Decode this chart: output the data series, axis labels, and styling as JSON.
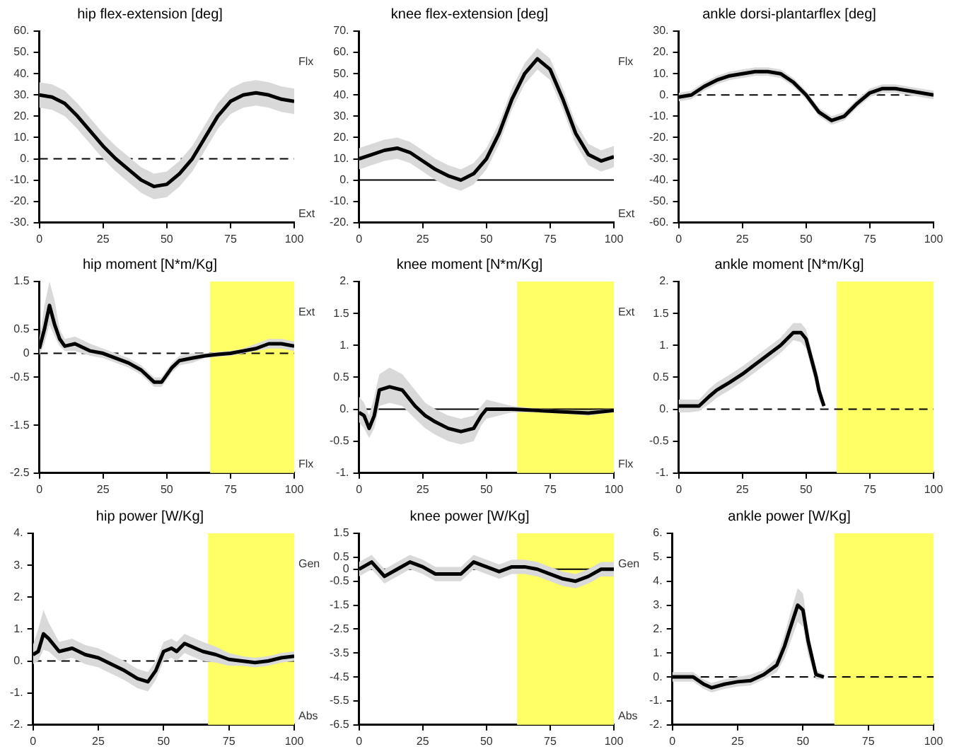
{
  "chart_data": [
    {
      "type": "line",
      "title": "hip flex-extension [deg]",
      "xlim": [
        0,
        100
      ],
      "xticks": [
        0,
        25,
        50,
        75,
        100
      ],
      "ylim": [
        -30,
        60
      ],
      "yticks": [
        {
          "value": 60,
          "label": "60."
        },
        {
          "value": 50,
          "label": "50."
        },
        {
          "value": 40,
          "label": "40."
        },
        {
          "value": 30,
          "label": "30."
        },
        {
          "value": 20,
          "label": "20."
        },
        {
          "value": 10,
          "label": "10."
        },
        {
          "value": 0,
          "label": "0."
        },
        {
          "value": -10,
          "label": "-10."
        },
        {
          "value": -20,
          "label": "-20."
        },
        {
          "value": -30,
          "label": "-30."
        }
      ],
      "annotations": [
        "Flx",
        "Ext"
      ],
      "ref_lines": [
        {
          "axis": "y",
          "value": 0,
          "line_style": "dashed"
        }
      ],
      "legend": false,
      "grid": false,
      "marker": "none",
      "series": [
        {
          "color": "#000000",
          "x": [
            0,
            5,
            10,
            15,
            20,
            25,
            30,
            35,
            40,
            45,
            50,
            55,
            60,
            65,
            70,
            75,
            80,
            85,
            90,
            95,
            100
          ],
          "values": [
            30,
            29,
            26,
            20,
            13,
            6,
            0,
            -5,
            -10,
            -13,
            -12,
            -7,
            0,
            10,
            20,
            27,
            30,
            31,
            30,
            28,
            27
          ],
          "lower": [
            24,
            23,
            20,
            14,
            7,
            0,
            -6,
            -11,
            -16,
            -19,
            -18,
            -13,
            -6,
            4,
            14,
            21,
            24,
            25,
            24,
            22,
            21
          ],
          "upper": [
            36,
            35,
            32,
            26,
            19,
            12,
            6,
            1,
            -4,
            -7,
            -6,
            -1,
            6,
            16,
            26,
            33,
            36,
            37,
            36,
            34,
            33
          ]
        }
      ]
    },
    {
      "type": "line",
      "title": "knee flex-extension [deg]",
      "xlim": [
        0,
        100
      ],
      "xticks": [
        0,
        25,
        50,
        75,
        100
      ],
      "ylim": [
        -20,
        70
      ],
      "yticks": [
        {
          "value": 70,
          "label": "70."
        },
        {
          "value": 60,
          "label": "60."
        },
        {
          "value": 50,
          "label": "50."
        },
        {
          "value": 40,
          "label": "40."
        },
        {
          "value": 30,
          "label": "30."
        },
        {
          "value": 20,
          "label": "20."
        },
        {
          "value": 10,
          "label": "10."
        },
        {
          "value": 0,
          "label": "0."
        },
        {
          "value": -10,
          "label": "-10."
        },
        {
          "value": -20,
          "label": "-20."
        }
      ],
      "annotations": [
        "Flx",
        "Ext"
      ],
      "ref_lines": [
        {
          "axis": "y",
          "value": 0,
          "line_style": "solid"
        }
      ],
      "legend": false,
      "grid": false,
      "marker": "none",
      "series": [
        {
          "color": "#000000",
          "x": [
            0,
            5,
            10,
            15,
            20,
            25,
            30,
            35,
            40,
            45,
            50,
            55,
            60,
            65,
            70,
            75,
            80,
            85,
            90,
            95,
            100
          ],
          "values": [
            10,
            12,
            14,
            15,
            13,
            9,
            5,
            2,
            0,
            3,
            10,
            22,
            38,
            50,
            57,
            52,
            38,
            22,
            12,
            9,
            11
          ],
          "lower": [
            5,
            7,
            9,
            10,
            8,
            4,
            0,
            -3,
            -5,
            -2,
            5,
            17,
            33,
            45,
            52,
            47,
            33,
            17,
            7,
            4,
            6
          ],
          "upper": [
            15,
            17,
            19,
            20,
            18,
            14,
            10,
            7,
            5,
            8,
            15,
            27,
            43,
            55,
            62,
            57,
            43,
            27,
            17,
            14,
            16
          ]
        }
      ]
    },
    {
      "type": "line",
      "title": "ankle dorsi-plantarflex [deg]",
      "xlim": [
        0,
        100
      ],
      "xticks": [
        0,
        25,
        50,
        75,
        100
      ],
      "ylim": [
        -60,
        30
      ],
      "yticks": [
        {
          "value": 30,
          "label": "30."
        },
        {
          "value": 20,
          "label": "20."
        },
        {
          "value": 10,
          "label": "10."
        },
        {
          "value": 0,
          "label": "0."
        },
        {
          "value": -10,
          "label": "-10."
        },
        {
          "value": -20,
          "label": "-20."
        },
        {
          "value": -30,
          "label": "-30."
        },
        {
          "value": -40,
          "label": "-40."
        },
        {
          "value": -50,
          "label": "-50."
        },
        {
          "value": -60,
          "label": "-60."
        }
      ],
      "ref_lines": [
        {
          "axis": "y",
          "value": 0,
          "line_style": "dashed"
        }
      ],
      "legend": false,
      "grid": false,
      "marker": "none",
      "series": [
        {
          "color": "#000000",
          "x": [
            0,
            5,
            10,
            15,
            20,
            25,
            30,
            35,
            40,
            45,
            50,
            55,
            60,
            65,
            70,
            75,
            80,
            85,
            90,
            95,
            100
          ],
          "values": [
            -1,
            0,
            4,
            7,
            9,
            10,
            11,
            11,
            10,
            6,
            0,
            -8,
            -12,
            -10,
            -4,
            1,
            3,
            3,
            2,
            1,
            0
          ],
          "lower": [
            -3,
            -2,
            2,
            5,
            7,
            8,
            9,
            9,
            8,
            4,
            -2,
            -10,
            -14,
            -12,
            -6,
            -1,
            1,
            1,
            0,
            -1,
            -2
          ],
          "upper": [
            1,
            2,
            6,
            9,
            11,
            12,
            13,
            13,
            12,
            8,
            2,
            -6,
            -10,
            -8,
            -2,
            3,
            5,
            5,
            4,
            3,
            2
          ]
        }
      ]
    },
    {
      "type": "line",
      "title": "hip moment [N*m/Kg]",
      "xlim": [
        0,
        100
      ],
      "xticks": [
        0,
        25,
        50,
        75,
        100
      ],
      "ylim": [
        -2.5,
        1.5
      ],
      "yticks": [
        1.5,
        0.5,
        0,
        -0.5,
        -1.5,
        -2.5
      ],
      "annotations": [
        "Ext",
        "Flx"
      ],
      "ref_lines": [
        {
          "axis": "y",
          "value": 0,
          "line_style": "dashed"
        }
      ],
      "bands": [
        {
          "axis": "x",
          "from": 67,
          "to": 100,
          "color": "#ffff66"
        }
      ],
      "legend": false,
      "grid": false,
      "marker": "none",
      "series": [
        {
          "color": "#000000",
          "x": [
            0,
            2,
            4,
            6,
            8,
            10,
            14,
            20,
            25,
            30,
            35,
            40,
            45,
            48,
            52,
            55,
            60,
            65,
            70,
            75,
            80,
            85,
            90,
            95,
            100
          ],
          "values": [
            0.1,
            0.5,
            1,
            0.6,
            0.3,
            0.15,
            0.2,
            0.05,
            0,
            -0.1,
            -0.2,
            -0.35,
            -0.6,
            -0.6,
            -0.3,
            -0.15,
            -0.1,
            -0.05,
            -0.02,
            0,
            0.05,
            0.1,
            0.2,
            0.2,
            0.15
          ],
          "lower": [
            -0.05,
            0.2,
            0.6,
            0.35,
            0.15,
            0.05,
            0.05,
            -0.05,
            -0.1,
            -0.2,
            -0.3,
            -0.45,
            -0.7,
            -0.7,
            -0.4,
            -0.25,
            -0.2,
            -0.1,
            -0.07,
            -0.05,
            0,
            0.05,
            0.1,
            0.1,
            0.05
          ],
          "upper": [
            0.3,
            1,
            1.5,
            1.1,
            0.5,
            0.3,
            0.35,
            0.2,
            0.1,
            0,
            -0.1,
            -0.25,
            -0.5,
            -0.5,
            -0.2,
            -0.05,
            0,
            0,
            0.03,
            0.05,
            0.1,
            0.2,
            0.3,
            0.3,
            0.25
          ]
        }
      ]
    },
    {
      "type": "line",
      "title": "knee moment [N*m/Kg]",
      "xlim": [
        0,
        100
      ],
      "xticks": [
        0,
        25,
        50,
        75,
        100
      ],
      "ylim": [
        -1,
        2
      ],
      "yticks": [
        {
          "value": 2,
          "label": "2."
        },
        1.5,
        {
          "value": 1,
          "label": "1."
        },
        0.5,
        {
          "value": 0,
          "label": "0."
        },
        -0.5,
        {
          "value": -1,
          "label": "-1."
        }
      ],
      "annotations": [
        "Ext",
        "Flx"
      ],
      "ref_lines": [
        {
          "axis": "y",
          "value": 0,
          "line_style": "solid"
        }
      ],
      "bands": [
        {
          "axis": "x",
          "from": 62,
          "to": 100,
          "color": "#ffff66"
        }
      ],
      "legend": false,
      "grid": false,
      "marker": "none",
      "series": [
        {
          "color": "#000000",
          "x": [
            0,
            2,
            4,
            6,
            8,
            12,
            17,
            22,
            26,
            30,
            35,
            40,
            45,
            48,
            50,
            55,
            60,
            70,
            80,
            90,
            100
          ],
          "values": [
            -0.05,
            -0.1,
            -0.3,
            -0.1,
            0.3,
            0.35,
            0.3,
            0.05,
            -0.1,
            -0.2,
            -0.3,
            -0.35,
            -0.3,
            -0.1,
            0,
            0,
            0,
            -0.02,
            -0.04,
            -0.06,
            -0.02
          ],
          "lower": [
            -0.2,
            -0.3,
            -0.45,
            -0.3,
            0.05,
            0.1,
            0.05,
            -0.15,
            -0.3,
            -0.4,
            -0.5,
            -0.55,
            -0.5,
            -0.25,
            -0.15,
            -0.1,
            -0.05,
            -0.05,
            -0.07,
            -0.1,
            -0.05
          ],
          "upper": [
            0.2,
            0.1,
            -0.1,
            0.2,
            0.55,
            0.65,
            0.55,
            0.3,
            0.1,
            0,
            -0.1,
            -0.15,
            -0.1,
            0.05,
            0.15,
            0.1,
            0.05,
            0.01,
            -0.01,
            -0.02,
            0.01
          ]
        }
      ]
    },
    {
      "type": "line",
      "title": "ankle moment [N*m/Kg]",
      "xlim": [
        0,
        100
      ],
      "xticks": [
        0,
        25,
        50,
        75,
        100
      ],
      "ylim": [
        -1,
        2
      ],
      "yticks": [
        {
          "value": 2,
          "label": "2."
        },
        1.5,
        {
          "value": 1,
          "label": "1."
        },
        0.5,
        {
          "value": 0,
          "label": "0."
        },
        -0.5,
        {
          "value": -1,
          "label": "-1."
        }
      ],
      "ref_lines": [
        {
          "axis": "y",
          "value": 0,
          "line_style": "dashed"
        }
      ],
      "bands": [
        {
          "axis": "x",
          "from": 62,
          "to": 100,
          "color": "#ffff66"
        }
      ],
      "legend": false,
      "grid": false,
      "marker": "none",
      "series": [
        {
          "color": "#000000",
          "x": [
            0,
            4,
            8,
            12,
            15,
            20,
            25,
            30,
            35,
            40,
            45,
            48,
            50,
            52,
            54,
            55,
            57
          ],
          "values": [
            0.05,
            0.05,
            0.05,
            0.2,
            0.3,
            0.42,
            0.55,
            0.7,
            0.85,
            1,
            1.2,
            1.2,
            1.1,
            0.8,
            0.5,
            0.3,
            0.05
          ],
          "lower": [
            -0.05,
            -0.05,
            -0.03,
            0.08,
            0.18,
            0.3,
            0.43,
            0.58,
            0.73,
            0.88,
            1.08,
            1.05,
            0.95,
            0.65,
            0.35,
            0.15,
            0
          ],
          "upper": [
            0.15,
            0.15,
            0.15,
            0.32,
            0.42,
            0.54,
            0.67,
            0.82,
            0.97,
            1.12,
            1.35,
            1.35,
            1.25,
            0.95,
            0.65,
            0.45,
            0.1
          ]
        }
      ]
    },
    {
      "type": "line",
      "title": "hip power [W/Kg]",
      "xlim": [
        0,
        100
      ],
      "xticks": [
        0,
        25,
        50,
        75,
        100
      ],
      "ylim": [
        -2,
        4
      ],
      "yticks": [
        {
          "value": 4,
          "label": "4."
        },
        {
          "value": 3,
          "label": "3."
        },
        {
          "value": 2,
          "label": "2."
        },
        {
          "value": 1,
          "label": "1."
        },
        {
          "value": 0,
          "label": "0."
        },
        {
          "value": -1,
          "label": "-1."
        },
        {
          "value": -2,
          "label": "-2."
        }
      ],
      "annotations": [
        "Gen",
        "Abs"
      ],
      "ref_lines": [
        {
          "axis": "y",
          "value": 0,
          "line_style": "dashed"
        }
      ],
      "bands": [
        {
          "axis": "x",
          "from": 67,
          "to": 100,
          "color": "#ffff66"
        }
      ],
      "legend": false,
      "grid": false,
      "marker": "none",
      "series": [
        {
          "color": "#000000",
          "x": [
            0,
            2,
            4,
            6,
            10,
            15,
            20,
            25,
            30,
            35,
            40,
            44,
            47,
            50,
            53,
            55,
            58,
            65,
            70,
            75,
            80,
            85,
            90,
            95,
            100
          ],
          "values": [
            0.2,
            0.3,
            0.85,
            0.7,
            0.3,
            0.4,
            0.2,
            0.1,
            -0.1,
            -0.3,
            -0.55,
            -0.65,
            -0.3,
            0.3,
            0.4,
            0.3,
            0.55,
            0.3,
            0.2,
            0.05,
            0,
            -0.05,
            0,
            0.1,
            0.15
          ],
          "lower": [
            -0.1,
            0,
            0.35,
            0.3,
            0,
            0.1,
            -0.1,
            -0.2,
            -0.4,
            -0.6,
            -0.85,
            -0.95,
            -0.6,
            0,
            0.1,
            0,
            0.25,
            0,
            -0.05,
            -0.15,
            -0.15,
            -0.2,
            -0.15,
            -0.05,
            0
          ],
          "upper": [
            0.5,
            1,
            1.6,
            1.2,
            0.6,
            0.7,
            0.5,
            0.4,
            0.2,
            0,
            -0.25,
            -0.35,
            0,
            0.6,
            0.7,
            0.6,
            0.85,
            0.6,
            0.45,
            0.25,
            0.15,
            0.1,
            0.15,
            0.25,
            0.3
          ]
        }
      ]
    },
    {
      "type": "line",
      "title": "knee power [W/Kg]",
      "xlim": [
        0,
        100
      ],
      "xticks": [
        0,
        25,
        50,
        75,
        100
      ],
      "ylim": [
        -6.5,
        1.5
      ],
      "yticks": [
        1.5,
        0.5,
        0,
        -0.5,
        -1.5,
        -2.5,
        -3.5,
        -4.5,
        -5.5,
        -6.5
      ],
      "annotations": [
        "Gen",
        "Abs"
      ],
      "ref_lines": [
        {
          "axis": "y",
          "value": 0,
          "line_style": "solid"
        }
      ],
      "bands": [
        {
          "axis": "x",
          "from": 62,
          "to": 100,
          "color": "#ffff66"
        }
      ],
      "legend": false,
      "grid": false,
      "marker": "none",
      "series": [
        {
          "color": "#000000",
          "x": [
            0,
            5,
            10,
            15,
            20,
            25,
            30,
            35,
            40,
            45,
            50,
            55,
            60,
            65,
            70,
            75,
            80,
            85,
            90,
            95,
            100
          ],
          "values": [
            0,
            0.3,
            -0.3,
            0,
            0.3,
            0.1,
            -0.2,
            -0.2,
            -0.2,
            0.3,
            0.1,
            -0.1,
            0.1,
            0.1,
            0,
            -0.2,
            -0.4,
            -0.5,
            -0.3,
            0,
            0
          ],
          "lower": [
            -0.3,
            0,
            -0.6,
            -0.3,
            0,
            -0.2,
            -0.5,
            -0.5,
            -0.5,
            0,
            -0.2,
            -0.4,
            -0.2,
            -0.2,
            -0.3,
            -0.5,
            -0.7,
            -0.8,
            -0.6,
            -0.3,
            -0.3
          ],
          "upper": [
            0.3,
            0.6,
            0,
            0.3,
            0.6,
            0.4,
            0.1,
            0.1,
            0.1,
            0.6,
            0.4,
            0.2,
            0.4,
            0.4,
            0.3,
            0.1,
            -0.1,
            -0.2,
            0,
            0.3,
            0.3
          ]
        }
      ]
    },
    {
      "type": "line",
      "title": "ankle power [W/Kg]",
      "xlim": [
        0,
        100
      ],
      "xticks": [
        0,
        25,
        50,
        75,
        100
      ],
      "ylim": [
        -2,
        6
      ],
      "yticks": [
        {
          "value": 6,
          "label": "6."
        },
        {
          "value": 5,
          "label": "5."
        },
        {
          "value": 4,
          "label": "4."
        },
        {
          "value": 3,
          "label": "3."
        },
        {
          "value": 2,
          "label": "2."
        },
        {
          "value": 1,
          "label": "1."
        },
        {
          "value": 0,
          "label": "0."
        },
        {
          "value": -1,
          "label": "-1."
        },
        {
          "value": -2,
          "label": "-2."
        }
      ],
      "ref_lines": [
        {
          "axis": "y",
          "value": 0,
          "line_style": "dashed"
        }
      ],
      "bands": [
        {
          "axis": "x",
          "from": 62,
          "to": 100,
          "color": "#ffff66"
        }
      ],
      "legend": false,
      "grid": false,
      "marker": "none",
      "series": [
        {
          "color": "#000000",
          "x": [
            0,
            5,
            8,
            12,
            15,
            20,
            25,
            30,
            35,
            40,
            43,
            45,
            48,
            50,
            52,
            55,
            58
          ],
          "values": [
            0,
            0,
            0,
            -0.3,
            -0.45,
            -0.3,
            -0.2,
            -0.15,
            0.1,
            0.5,
            1.3,
            2,
            3,
            2.8,
            1.5,
            0.1,
            0
          ],
          "lower": [
            -0.2,
            -0.2,
            -0.2,
            -0.5,
            -0.65,
            -0.5,
            -0.4,
            -0.35,
            -0.1,
            0.2,
            0.8,
            1.4,
            2.3,
            2.1,
            0.9,
            -0.1,
            -0.1
          ],
          "upper": [
            0.2,
            0.2,
            0.2,
            -0.1,
            -0.25,
            -0.1,
            0,
            0.1,
            0.3,
            0.8,
            1.8,
            2.6,
            3.7,
            3.5,
            2,
            0.3,
            0.1
          ]
        }
      ]
    }
  ]
}
